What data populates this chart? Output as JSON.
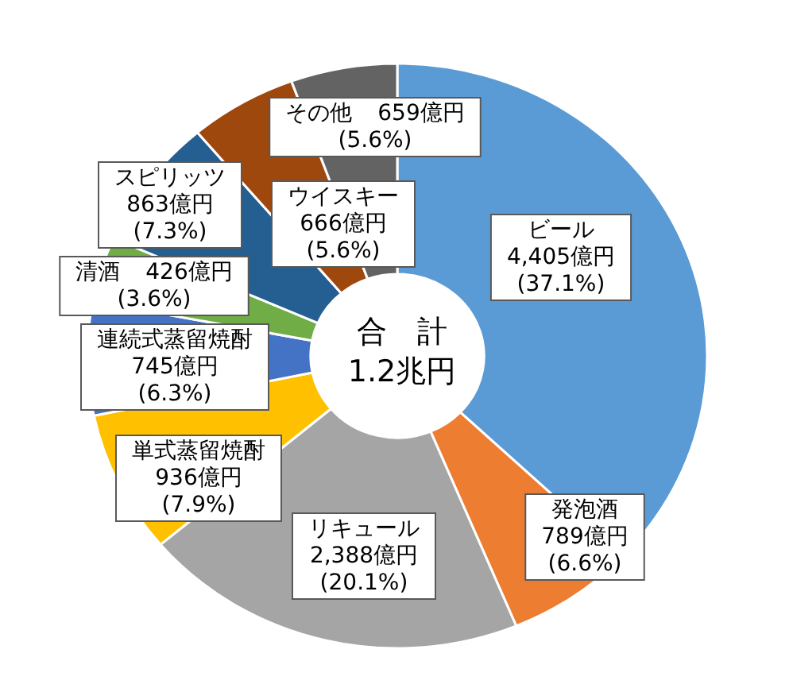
{
  "chart_data": {
    "type": "donut",
    "categories": [
      "ビール",
      "発泡酒",
      "リキュール",
      "単式蒸留焼酎",
      "連続式蒸留焼酎",
      "清酒",
      "スピリッツ",
      "ウイスキー",
      "その他"
    ],
    "values": [
      4405,
      789,
      2388,
      936,
      745,
      426,
      863,
      666,
      659
    ],
    "colors": [
      "#5b9bd5",
      "#ed7d31",
      "#a5a5a5",
      "#ffc000",
      "#4472c4",
      "#70ad47",
      "#255e91",
      "#9e480e",
      "#636363"
    ],
    "value_labels": [
      "4,405億円\n(37.1%)",
      "789億円\n(6.6%)",
      "2,388億円\n(20.1%)",
      "936億円\n(7.9%)",
      "745億円\n(6.3%)",
      "426億円\n(3.6%)",
      "863億円\n(7.3%)",
      "666億円\n(5.6%)",
      "659億円\n(5.6%)"
    ],
    "annotations": [
      "合　計",
      "1.2兆円"
    ]
  }
}
